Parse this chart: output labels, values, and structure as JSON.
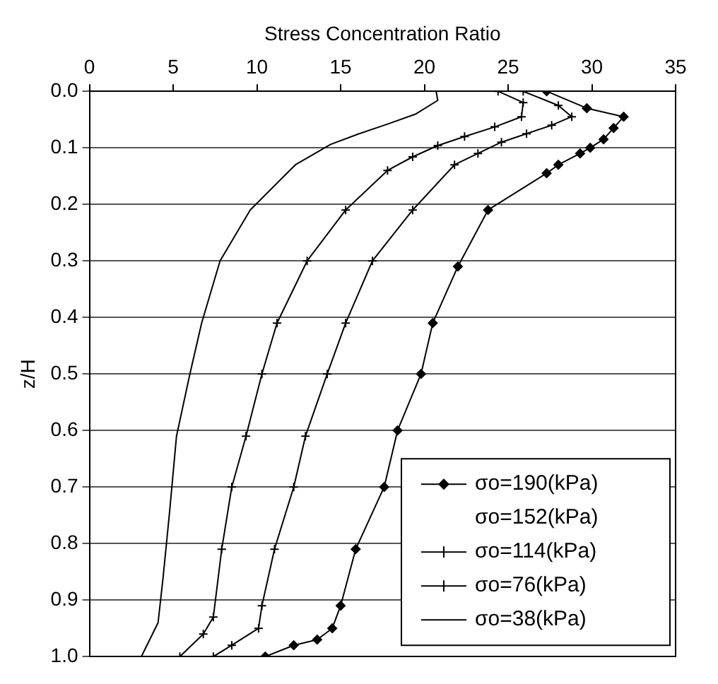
{
  "chart_data": {
    "type": "line",
    "xlabel": "Stress Concentration Ratio",
    "ylabel": "z/H",
    "xlim": [
      0,
      35
    ],
    "xticks": [
      0,
      5,
      10,
      15,
      20,
      25,
      30,
      35
    ],
    "ylim": [
      1,
      0
    ],
    "yticks": [
      {
        "value": 0,
        "label": "0.0"
      },
      {
        "value": 0.1,
        "label": "0.1"
      },
      {
        "value": 0.2,
        "label": "0.2"
      },
      {
        "value": 0.3,
        "label": "0.3"
      },
      {
        "value": 0.4,
        "label": "0.4"
      },
      {
        "value": 0.5,
        "label": "0.5"
      },
      {
        "value": 0.6,
        "label": "0.6"
      },
      {
        "value": 0.7,
        "label": "0.7"
      },
      {
        "value": 0.8,
        "label": "0.8"
      },
      {
        "value": 0.9,
        "label": "0.9"
      },
      {
        "value": 1,
        "label": "1.0"
      }
    ],
    "grid": "y",
    "legend": "bottom right",
    "series": [
      {
        "name": "σo=190(kPa)",
        "color": "#000000",
        "marker": "diamond",
        "x": [
          27.3,
          29.7,
          31.9,
          31.3,
          30.7,
          29.9,
          29.3,
          28.0,
          27.3,
          23.8,
          22.0,
          20.5,
          19.8,
          18.4,
          17.6,
          15.9,
          15.0,
          14.5,
          13.6,
          12.2,
          10.5
        ],
        "values": [
          0,
          0.03,
          0.045,
          0.065,
          0.085,
          0.1,
          0.11,
          0.13,
          0.145,
          0.21,
          0.31,
          0.41,
          0.5,
          0.6,
          0.7,
          0.81,
          0.91,
          0.95,
          0.97,
          0.98,
          1.0
        ]
      },
      {
        "name": "σo=152(kPa)"
      },
      {
        "name": "σo=114(kPa)",
        "color": "#000000",
        "marker": "cross",
        "x": [
          25.9,
          28.0,
          28.8,
          27.6,
          26.1,
          24.6,
          23.2,
          21.8,
          19.3,
          16.9,
          15.3,
          14.2,
          12.9,
          12.2,
          11.05,
          10.3,
          10.1,
          8.5,
          7.4
        ],
        "values": [
          0,
          0.025,
          0.045,
          0.06,
          0.075,
          0.09,
          0.11,
          0.13,
          0.21,
          0.3,
          0.41,
          0.5,
          0.61,
          0.7,
          0.81,
          0.91,
          0.95,
          0.98,
          1.0
        ]
      },
      {
        "name": "σo=76(kPa)",
        "color": "#000000",
        "marker": "cross",
        "x": [
          24.4,
          25.9,
          25.8,
          24.2,
          22.4,
          20.8,
          19.3,
          17.8,
          15.3,
          13.0,
          11.2,
          10.3,
          9.35,
          8.5,
          7.9,
          7.4,
          6.8,
          5.4
        ],
        "values": [
          0,
          0.02,
          0.045,
          0.063,
          0.08,
          0.096,
          0.116,
          0.14,
          0.21,
          0.3,
          0.41,
          0.5,
          0.61,
          0.7,
          0.81,
          0.93,
          0.96,
          1.0
        ]
      },
      {
        "name": "σo=38(kPa)",
        "color": "#000000",
        "marker": "none",
        "x": [
          20.7,
          20.8,
          19.5,
          17.8,
          16.1,
          14.4,
          12.3,
          9.6,
          7.8,
          6.7,
          6.0,
          5.2,
          4.8,
          4.4,
          4.1,
          3.1
        ],
        "values": [
          0,
          0.016,
          0.04,
          0.058,
          0.075,
          0.094,
          0.13,
          0.21,
          0.3,
          0.41,
          0.5,
          0.61,
          0.74,
          0.86,
          0.94,
          1.0
        ]
      }
    ]
  }
}
